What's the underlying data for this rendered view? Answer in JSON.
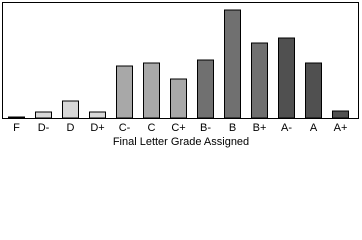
{
  "chart_data": {
    "type": "bar",
    "xlabel": "Final Letter Grade Assigned",
    "categories": [
      "F",
      "D-",
      "D",
      "D+",
      "C-",
      "C",
      "C+",
      "B-",
      "B",
      "B+",
      "A-",
      "A",
      "A+"
    ],
    "values": [
      1,
      6,
      17,
      6,
      52,
      55,
      39,
      58,
      108,
      75,
      80,
      55,
      7
    ],
    "colors": [
      "#d8d8d8",
      "#d8d8d8",
      "#d8d8d8",
      "#d8d8d8",
      "#a8a8a8",
      "#a8a8a8",
      "#a8a8a8",
      "#707070",
      "#707070",
      "#707070",
      "#505050",
      "#505050",
      "#505050"
    ],
    "ylim": [
      0,
      110
    ]
  }
}
